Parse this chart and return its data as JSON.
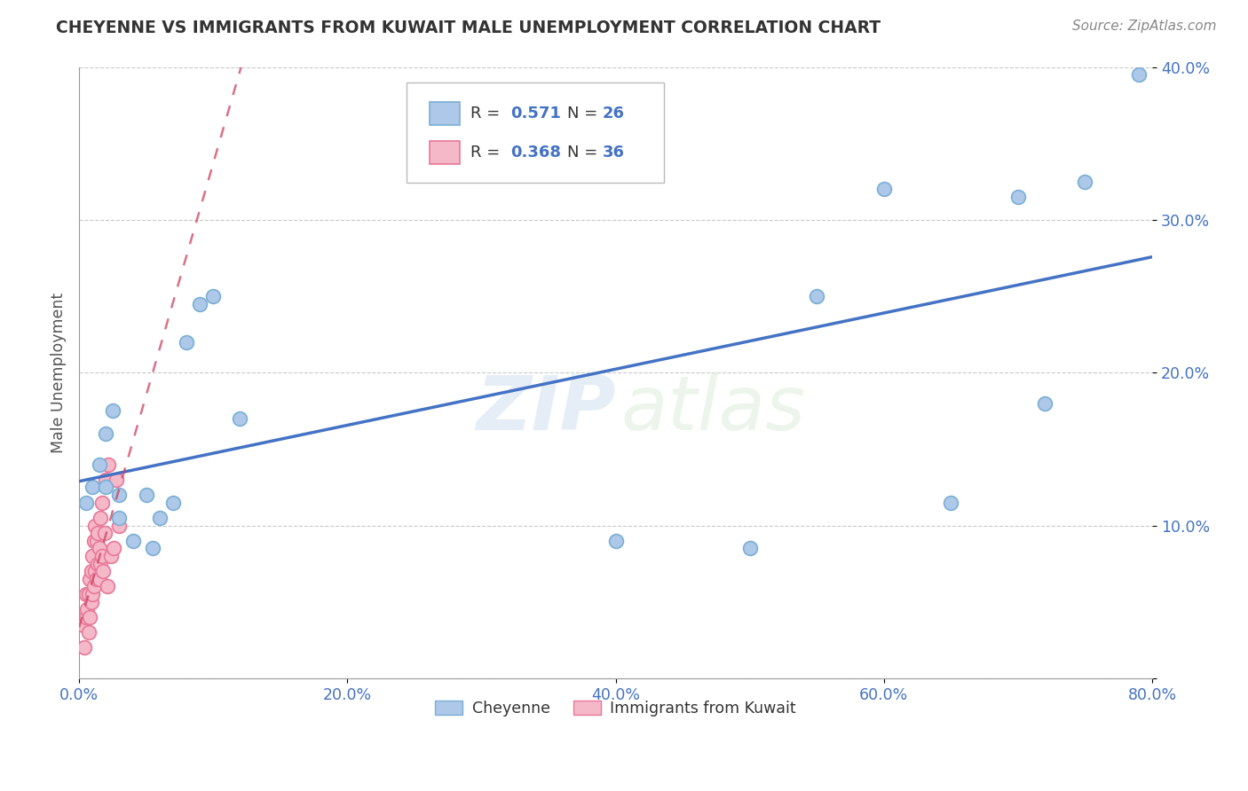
{
  "title": "CHEYENNE VS IMMIGRANTS FROM KUWAIT MALE UNEMPLOYMENT CORRELATION CHART",
  "source": "Source: ZipAtlas.com",
  "ylabel": "Male Unemployment",
  "xlim": [
    0.0,
    0.8
  ],
  "ylim": [
    0.0,
    0.4
  ],
  "xticks": [
    0.0,
    0.2,
    0.4,
    0.6,
    0.8
  ],
  "yticks": [
    0.0,
    0.1,
    0.2,
    0.3,
    0.4
  ],
  "xtick_labels": [
    "0.0%",
    "20.0%",
    "40.0%",
    "60.0%",
    "80.0%"
  ],
  "ytick_labels": [
    "",
    "10.0%",
    "20.0%",
    "30.0%",
    "40.0%"
  ],
  "cheyenne_x": [
    0.005,
    0.01,
    0.015,
    0.02,
    0.02,
    0.025,
    0.03,
    0.03,
    0.04,
    0.05,
    0.055,
    0.06,
    0.07,
    0.08,
    0.09,
    0.1,
    0.12,
    0.4,
    0.5,
    0.55,
    0.6,
    0.65,
    0.7,
    0.72,
    0.75,
    0.79
  ],
  "cheyenne_y": [
    0.115,
    0.125,
    0.14,
    0.125,
    0.16,
    0.175,
    0.105,
    0.12,
    0.09,
    0.12,
    0.085,
    0.105,
    0.115,
    0.22,
    0.245,
    0.25,
    0.17,
    0.09,
    0.085,
    0.25,
    0.32,
    0.115,
    0.315,
    0.18,
    0.325,
    0.395
  ],
  "kuwait_x": [
    0.003,
    0.004,
    0.005,
    0.005,
    0.006,
    0.007,
    0.007,
    0.008,
    0.008,
    0.009,
    0.009,
    0.01,
    0.01,
    0.011,
    0.011,
    0.012,
    0.012,
    0.013,
    0.013,
    0.014,
    0.014,
    0.015,
    0.015,
    0.016,
    0.016,
    0.017,
    0.017,
    0.018,
    0.019,
    0.02,
    0.021,
    0.022,
    0.024,
    0.026,
    0.028,
    0.03
  ],
  "kuwait_y": [
    0.035,
    0.02,
    0.055,
    0.04,
    0.045,
    0.055,
    0.03,
    0.04,
    0.065,
    0.05,
    0.07,
    0.055,
    0.08,
    0.06,
    0.09,
    0.07,
    0.1,
    0.065,
    0.09,
    0.075,
    0.095,
    0.065,
    0.085,
    0.075,
    0.105,
    0.08,
    0.115,
    0.07,
    0.095,
    0.13,
    0.06,
    0.14,
    0.08,
    0.085,
    0.13,
    0.1
  ],
  "cheyenne_color": "#adc8e8",
  "cheyenne_edge": "#7aafd4",
  "kuwait_color": "#f5b8c8",
  "kuwait_edge": "#e87898",
  "regression_blue_color": "#4472c4",
  "regression_pink_color": "#d04060",
  "R_cheyenne": 0.571,
  "N_cheyenne": 26,
  "R_kuwait": 0.368,
  "N_kuwait": 36,
  "watermark_zip": "ZIP",
  "watermark_atlas": "atlas",
  "legend_cheyenne": "Cheyenne",
  "legend_kuwait": "Immigrants from Kuwait",
  "background_color": "#ffffff",
  "grid_color": "#bbbbbb",
  "title_color": "#333333",
  "source_color": "#888888",
  "tick_color": "#4472c4",
  "axis_color": "#999999"
}
